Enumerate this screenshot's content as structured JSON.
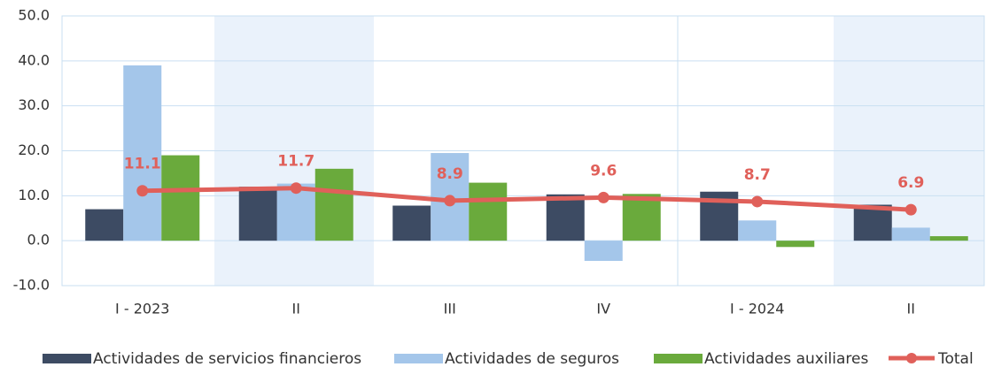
{
  "chart_data": {
    "type": "bar",
    "categories": [
      "I - 2023",
      "II",
      "III",
      "IV",
      "I - 2024",
      "II"
    ],
    "series": [
      {
        "name": "Actividades de servicios financieros",
        "color": "#3d4b63",
        "values": [
          7.0,
          12.0,
          7.8,
          10.3,
          10.9,
          8.0
        ]
      },
      {
        "name": "Actividades de seguros",
        "color": "#a4c6ea",
        "values": [
          39.0,
          12.7,
          19.5,
          -4.5,
          4.5,
          2.9
        ]
      },
      {
        "name": "Actividades auxiliares",
        "color": "#6aaa3c",
        "values": [
          19.0,
          16.0,
          12.9,
          10.4,
          -1.4,
          1.0
        ]
      },
      {
        "name": "Total",
        "color": "#e0605a",
        "type": "line",
        "values": [
          11.1,
          11.7,
          8.9,
          9.6,
          8.7,
          6.9
        ]
      }
    ],
    "ylim": [
      -10,
      50
    ],
    "yticks": [
      {
        "value": -10,
        "label": "-10.0"
      },
      {
        "value": 0,
        "label": "0.0"
      },
      {
        "value": 10,
        "label": "10.0"
      },
      {
        "value": 20,
        "label": "20.0"
      },
      {
        "value": 30,
        "label": "30.0"
      },
      {
        "value": 40,
        "label": "40.0"
      },
      {
        "value": 50,
        "label": "50.0"
      }
    ],
    "grid": true
  }
}
